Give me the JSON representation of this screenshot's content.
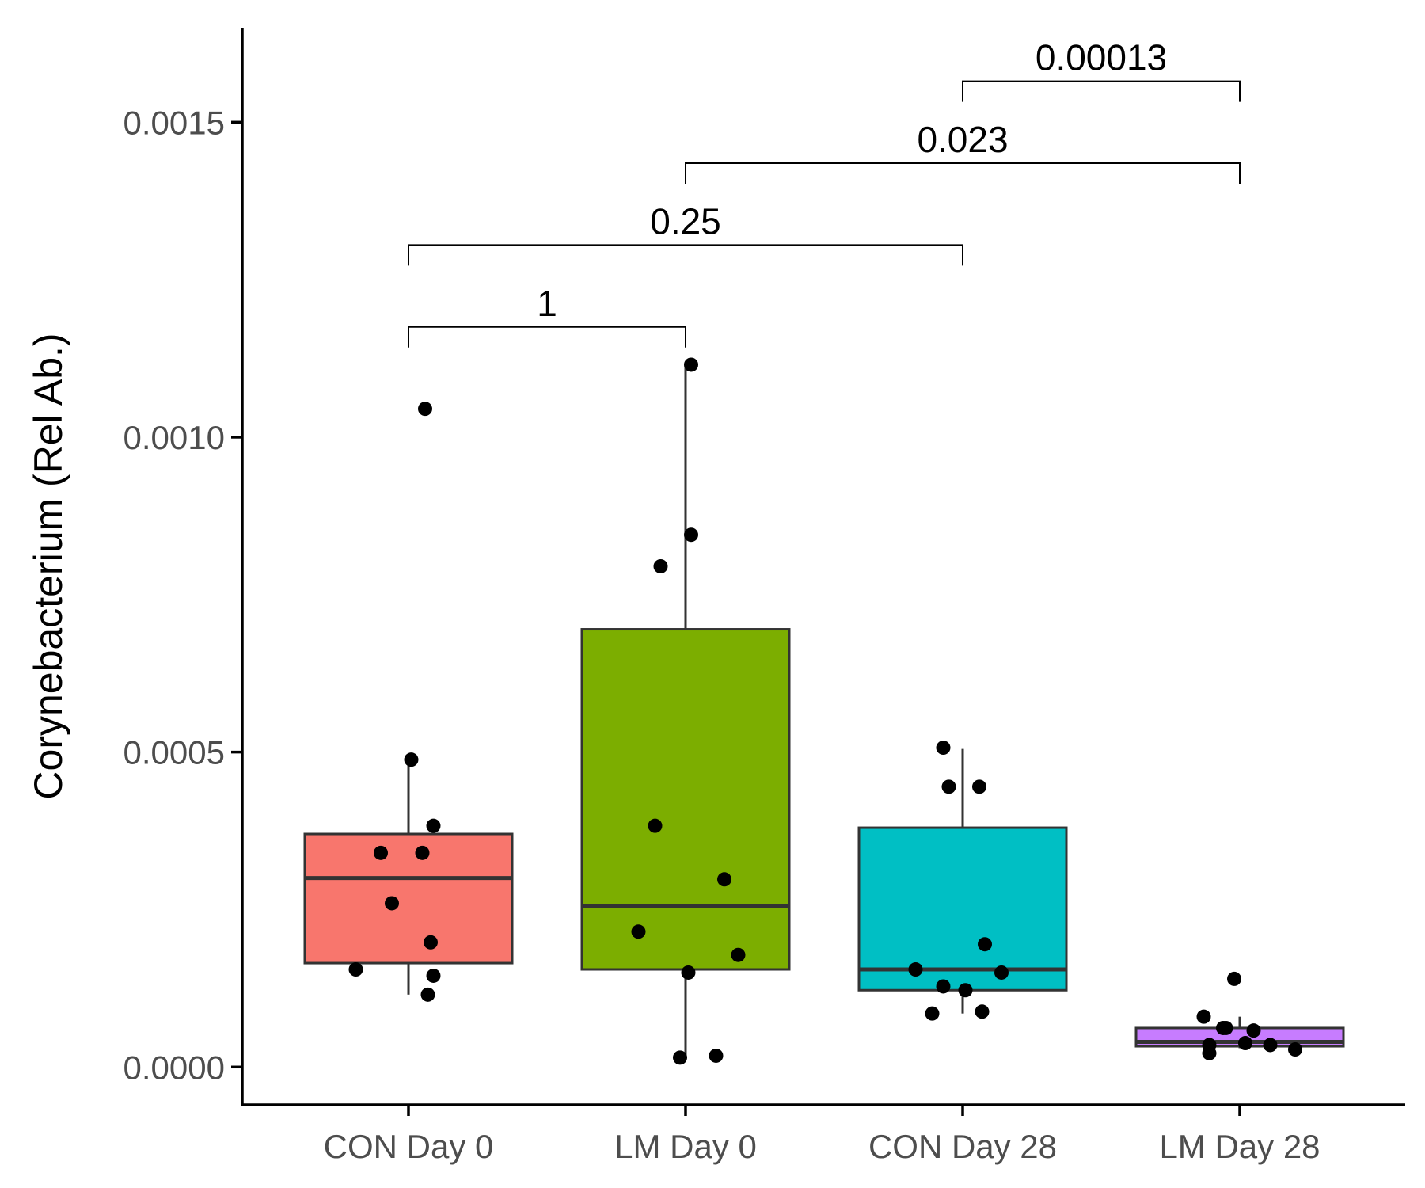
{
  "chart_data": {
    "type": "box",
    "ylabel": "Corynebacterium (Rel Ab.)",
    "ylim": [
      -6e-05,
      0.00165
    ],
    "yticks": [
      {
        "value": 0.0,
        "label": "0.0000"
      },
      {
        "value": 0.0005,
        "label": "0.0005"
      },
      {
        "value": 0.001,
        "label": "0.0010"
      },
      {
        "value": 0.0015,
        "label": "0.0015"
      }
    ],
    "categories": [
      "CON Day 0",
      "LM Day 0",
      "CON Day 28",
      "LM Day 28"
    ],
    "groups": [
      {
        "category": "CON Day 0",
        "color": "#F8766D",
        "whisker_low": 0.000115,
        "q1": 0.000165,
        "median": 0.0003,
        "q3": 0.00037,
        "whisker_high": 0.000485,
        "points": [
          {
            "dx": 0.06,
            "y": 0.001045
          },
          {
            "dx": 0.01,
            "y": 0.000488
          },
          {
            "dx": 0.09,
            "y": 0.000383
          },
          {
            "dx": -0.1,
            "y": 0.00034
          },
          {
            "dx": 0.05,
            "y": 0.00034
          },
          {
            "dx": -0.06,
            "y": 0.00026
          },
          {
            "dx": 0.08,
            "y": 0.000198
          },
          {
            "dx": -0.19,
            "y": 0.000155
          },
          {
            "dx": 0.09,
            "y": 0.000145
          },
          {
            "dx": 0.07,
            "y": 0.000115
          }
        ]
      },
      {
        "category": "LM Day 0",
        "color": "#7CAE00",
        "whisker_low": 1.5e-05,
        "q1": 0.000155,
        "median": 0.000255,
        "q3": 0.000695,
        "whisker_high": 0.001115,
        "points": [
          {
            "dx": 0.02,
            "y": 0.001115
          },
          {
            "dx": 0.02,
            "y": 0.000845
          },
          {
            "dx": -0.09,
            "y": 0.000795
          },
          {
            "dx": -0.11,
            "y": 0.000383
          },
          {
            "dx": 0.14,
            "y": 0.000298
          },
          {
            "dx": -0.17,
            "y": 0.000215
          },
          {
            "dx": 0.19,
            "y": 0.000178
          },
          {
            "dx": 0.01,
            "y": 0.00015
          },
          {
            "dx": -0.02,
            "y": 1.5e-05
          },
          {
            "dx": 0.11,
            "y": 1.8e-05
          }
        ]
      },
      {
        "category": "CON Day 28",
        "color": "#00BFC4",
        "whisker_low": 8.5e-05,
        "q1": 0.000122,
        "median": 0.000155,
        "q3": 0.00038,
        "whisker_high": 0.000505,
        "points": [
          {
            "dx": -0.07,
            "y": 0.000507
          },
          {
            "dx": -0.05,
            "y": 0.000445
          },
          {
            "dx": 0.06,
            "y": 0.000445
          },
          {
            "dx": 0.08,
            "y": 0.000195
          },
          {
            "dx": -0.17,
            "y": 0.000155
          },
          {
            "dx": 0.14,
            "y": 0.00015
          },
          {
            "dx": -0.07,
            "y": 0.000128
          },
          {
            "dx": 0.01,
            "y": 0.000122
          },
          {
            "dx": -0.11,
            "y": 8.5e-05
          },
          {
            "dx": 0.07,
            "y": 8.8e-05
          }
        ]
      },
      {
        "category": "LM Day 28",
        "color": "#C77CFF",
        "whisker_low": 3e-05,
        "q1": 3.3e-05,
        "median": 4e-05,
        "q3": 6.2e-05,
        "whisker_high": 8e-05,
        "points": [
          {
            "dx": -0.02,
            "y": 0.00014
          },
          {
            "dx": -0.13,
            "y": 8e-05
          },
          {
            "dx": -0.06,
            "y": 6.2e-05
          },
          {
            "dx": -0.05,
            "y": 6.2e-05
          },
          {
            "dx": 0.05,
            "y": 5.8e-05
          },
          {
            "dx": -0.11,
            "y": 3.5e-05
          },
          {
            "dx": 0.02,
            "y": 3.8e-05
          },
          {
            "dx": 0.11,
            "y": 3.5e-05
          },
          {
            "dx": 0.2,
            "y": 2.8e-05
          },
          {
            "dx": -0.11,
            "y": 2.2e-05
          }
        ]
      }
    ],
    "comparisons": [
      {
        "from": 0,
        "to": 1,
        "y": 0.001175,
        "label": "1"
      },
      {
        "from": 0,
        "to": 2,
        "y": 0.001305,
        "label": "0.25"
      },
      {
        "from": 1,
        "to": 3,
        "y": 0.001435,
        "label": "0.023"
      },
      {
        "from": 2,
        "to": 3,
        "y": 0.001565,
        "label": "0.00013"
      }
    ]
  }
}
